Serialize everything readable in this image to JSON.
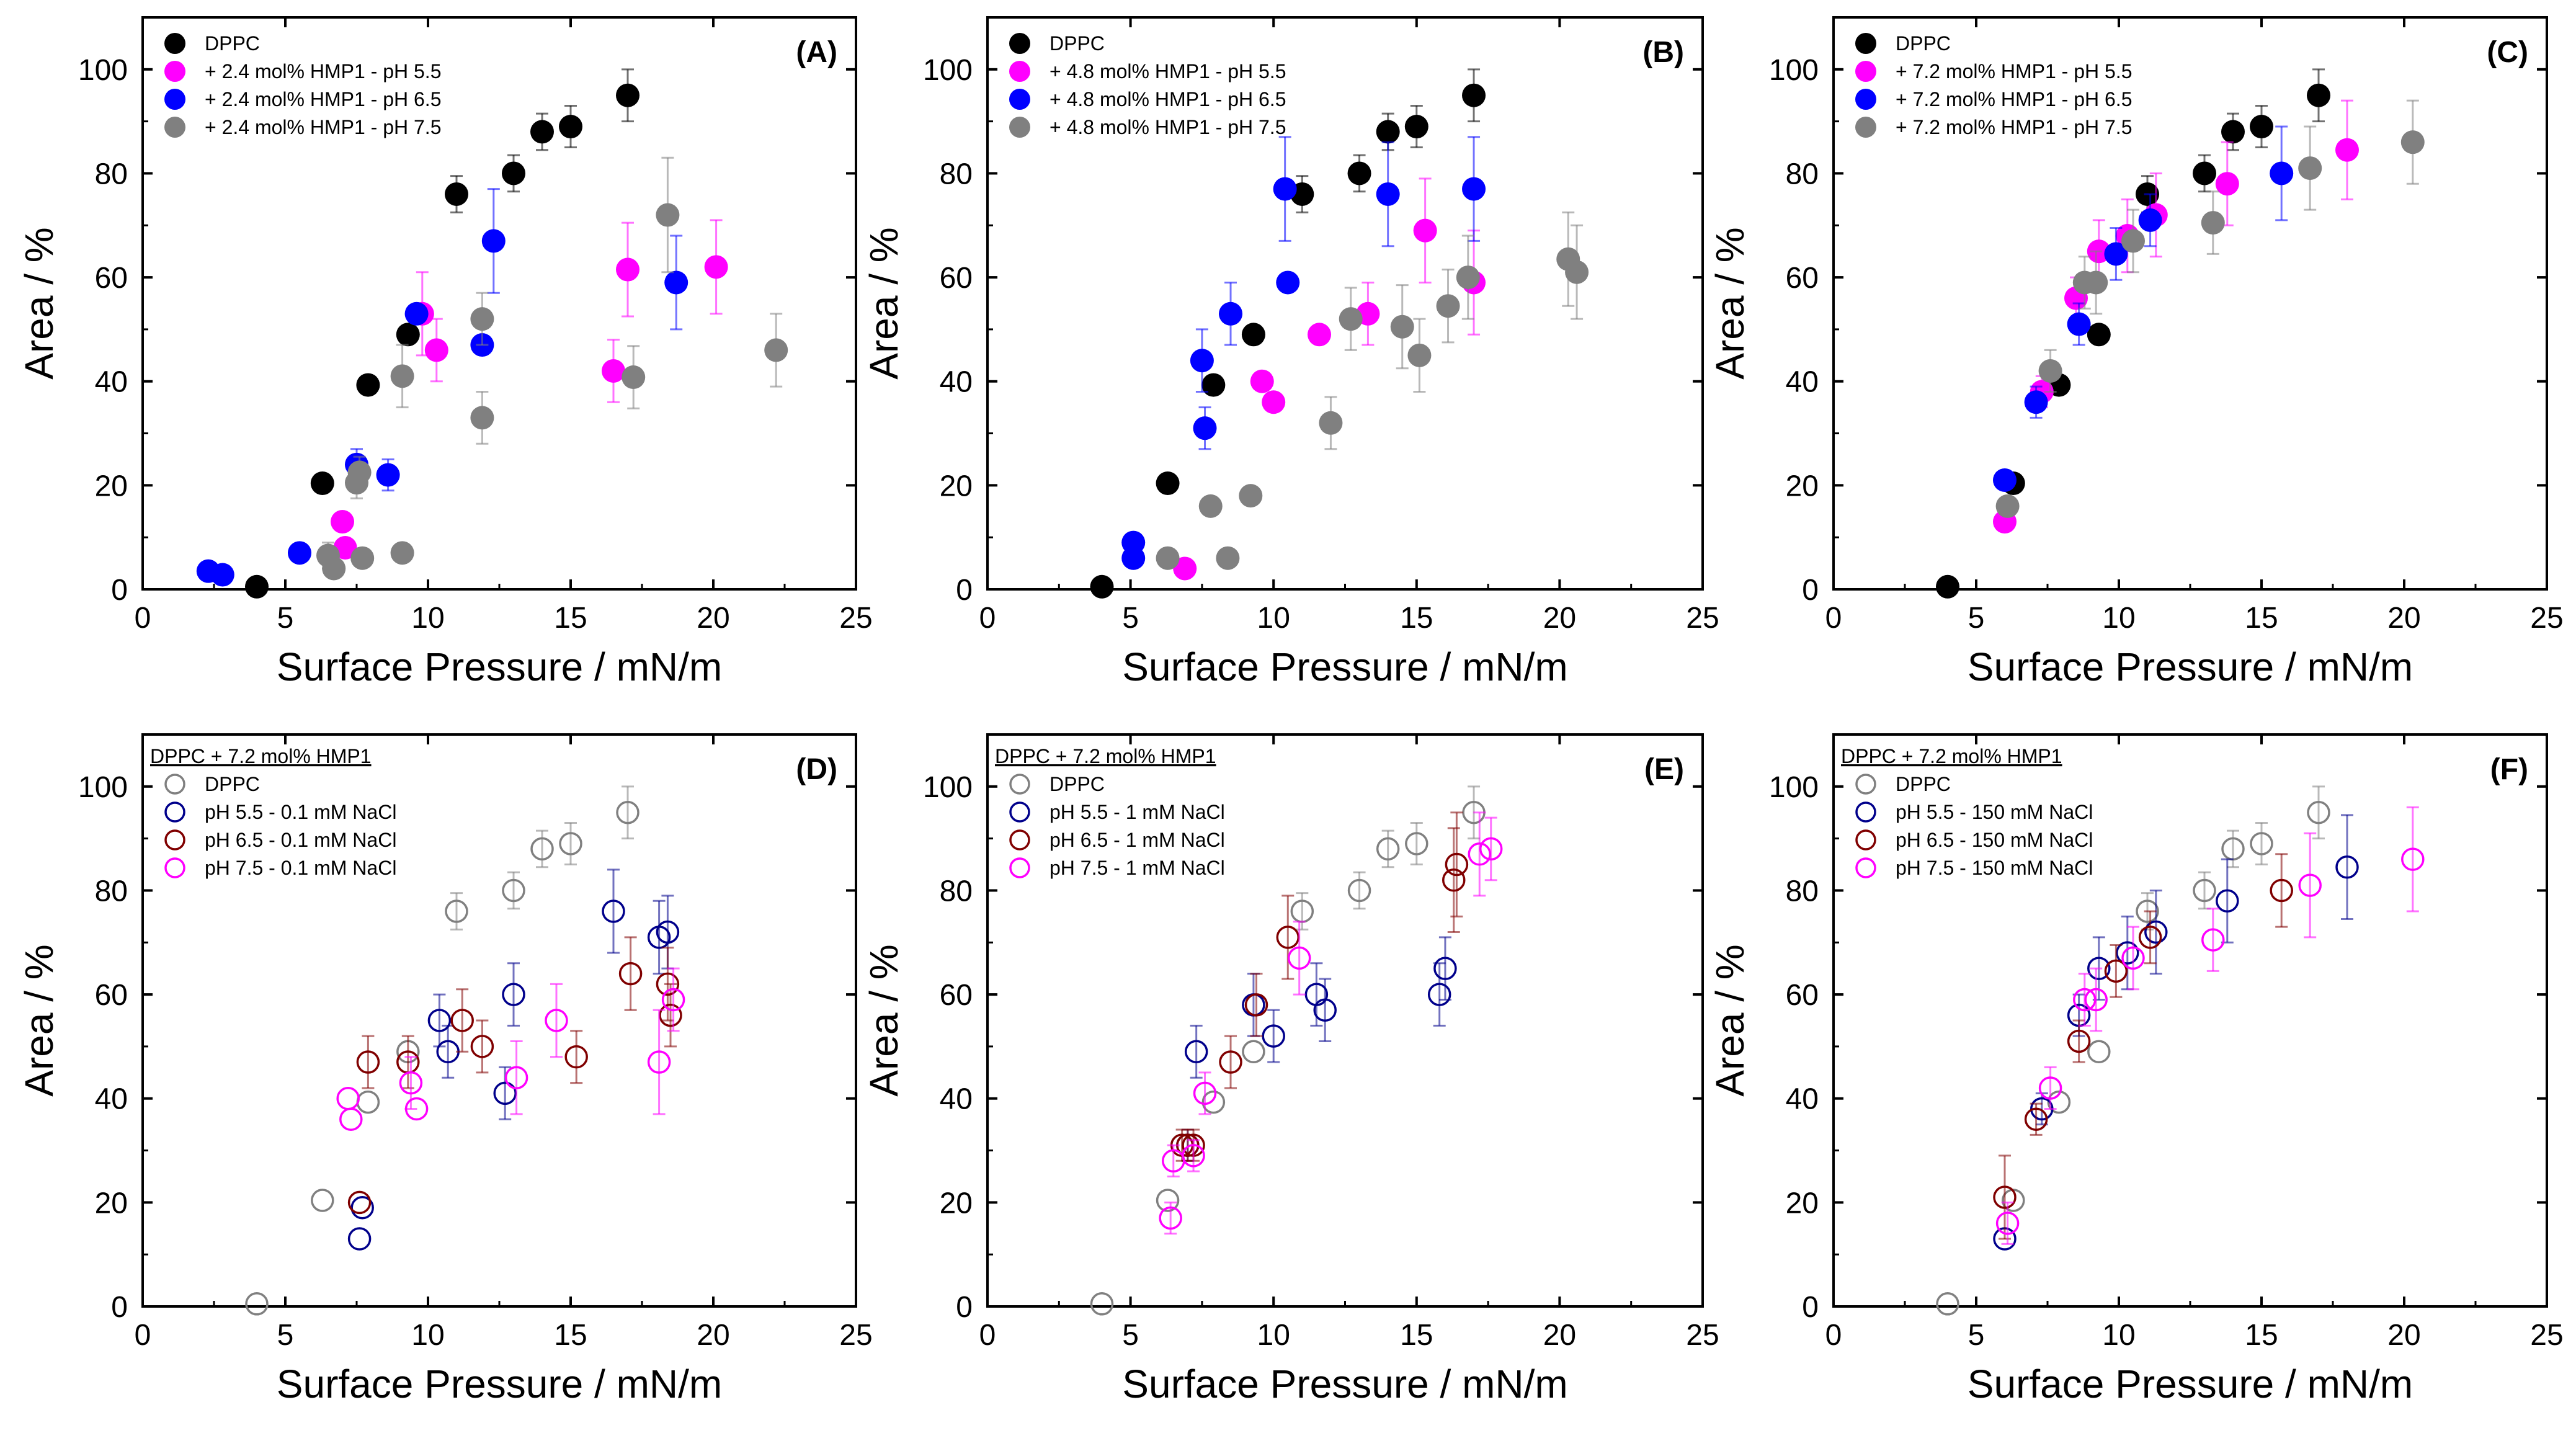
{
  "colors": {
    "DPPC_filled": "#000000",
    "ph55_filled": "#ff00ff",
    "ph65_filled": "#0000ff",
    "ph75_filled": "#808080",
    "DPPC_open": "#808080",
    "ph55_open": "#00008b",
    "ph65_open": "#800000",
    "ph75_open": "#ff00ff"
  },
  "chart_data": [
    {
      "id": "A",
      "type": "scatter",
      "panel_label": "(A)",
      "xlabel": "Surface Pressure / mN/m",
      "ylabel": "Area / %",
      "xlim": [
        0,
        25
      ],
      "ylim": [
        0,
        110
      ],
      "xticks": [
        0,
        5,
        10,
        15,
        20,
        25
      ],
      "yticks": [
        0,
        20,
        40,
        60,
        80,
        100
      ],
      "legend_title": "",
      "series": [
        {
          "name": "DPPC",
          "color": "#000000",
          "fill": true,
          "x": [
            4.0,
            6.3,
            7.9,
            9.3,
            11.0,
            13.0,
            14.0,
            15.0,
            17.0
          ],
          "y": [
            0.5,
            20.4,
            39.3,
            49.0,
            76.0,
            80.0,
            88.0,
            89.0,
            95.0
          ],
          "err": [
            0,
            0,
            0,
            0,
            3.5,
            3.5,
            3.5,
            4.0,
            5.0
          ]
        },
        {
          "name": "+ 2.4 mol% HMP1 - pH 5.5",
          "color": "#ff00ff",
          "fill": true,
          "x": [
            7.0,
            7.1,
            9.8,
            10.3,
            16.5,
            17.0,
            20.1
          ],
          "y": [
            13.0,
            8.0,
            53.0,
            46.0,
            42.0,
            61.5,
            62.0
          ],
          "err": [
            0,
            0,
            8.0,
            6.0,
            6.0,
            9.0,
            9.0
          ]
        },
        {
          "name": "+ 2.4 mol% HMP1 - pH 6.5",
          "color": "#0000ff",
          "fill": true,
          "x": [
            2.3,
            2.8,
            5.5,
            7.5,
            8.6,
            9.6,
            11.9,
            12.3,
            18.7
          ],
          "y": [
            3.5,
            2.8,
            7.0,
            24.0,
            22.0,
            53.0,
            47.0,
            67.0,
            59.0
          ],
          "err": [
            0,
            0,
            0,
            3.0,
            3.0,
            0,
            0,
            10.0,
            9.0
          ]
        },
        {
          "name": "+ 2.4 mol% HMP1 - pH 7.5",
          "color": "#808080",
          "fill": true,
          "x": [
            6.5,
            6.7,
            7.5,
            7.6,
            7.7,
            9.1,
            9.1,
            11.9,
            11.9,
            17.2,
            18.4,
            22.2
          ],
          "y": [
            6.5,
            4.0,
            20.5,
            22.5,
            6.0,
            7.0,
            41.0,
            33.0,
            52.0,
            40.8,
            72.0,
            46.0
          ],
          "err": [
            2.5,
            0,
            3.0,
            3.0,
            0,
            0,
            6.0,
            5.0,
            5.0,
            6.0,
            11.0,
            7.0
          ]
        }
      ]
    },
    {
      "id": "B",
      "type": "scatter",
      "panel_label": "(B)",
      "xlabel": "Surface Pressure / mN/m",
      "ylabel": "Area / %",
      "xlim": [
        0,
        25
      ],
      "ylim": [
        0,
        110
      ],
      "xticks": [
        0,
        5,
        10,
        15,
        20,
        25
      ],
      "yticks": [
        0,
        20,
        40,
        60,
        80,
        100
      ],
      "legend_title": "",
      "series": [
        {
          "name": "DPPC",
          "color": "#000000",
          "fill": true,
          "x": [
            4.0,
            6.3,
            7.9,
            9.3,
            11.0,
            13.0,
            14.0,
            15.0,
            17.0
          ],
          "y": [
            0.5,
            20.4,
            39.3,
            49.0,
            76.0,
            80.0,
            88.0,
            89.0,
            95.0
          ],
          "err": [
            0,
            0,
            0,
            0,
            3.5,
            3.5,
            3.5,
            4.0,
            5.0
          ]
        },
        {
          "name": "+ 4.8 mol% HMP1 - pH 5.5",
          "color": "#ff00ff",
          "fill": true,
          "x": [
            6.9,
            9.6,
            10.0,
            11.6,
            13.3,
            15.3,
            17.0
          ],
          "y": [
            4.0,
            40.0,
            36.0,
            49.0,
            53.0,
            69.0,
            59.0
          ],
          "err": [
            0,
            0,
            0,
            0,
            6.0,
            10.0,
            10.0
          ]
        },
        {
          "name": "+ 4.8 mol% HMP1 - pH 6.5",
          "color": "#0000ff",
          "fill": true,
          "x": [
            5.1,
            5.1,
            7.5,
            7.6,
            8.5,
            10.4,
            10.5,
            14.0,
            17.0
          ],
          "y": [
            9.0,
            6.0,
            44.0,
            31.0,
            53.0,
            77.0,
            59.0,
            76.0,
            77.0
          ],
          "err": [
            0,
            0,
            6.0,
            4.0,
            6.0,
            10.0,
            0,
            10.0,
            10.0
          ]
        },
        {
          "name": "+ 4.8 mol% HMP1 - pH 7.5",
          "color": "#808080",
          "fill": true,
          "x": [
            6.3,
            7.8,
            8.4,
            9.2,
            12.0,
            12.7,
            14.5,
            15.1,
            16.1,
            16.8,
            20.3,
            20.6
          ],
          "y": [
            6.0,
            16.0,
            6.0,
            18.0,
            32.0,
            52.0,
            50.5,
            45.0,
            54.5,
            60.0,
            63.5,
            61.0
          ],
          "err": [
            0,
            0,
            0,
            0,
            5.0,
            6.0,
            8.0,
            7.0,
            7.0,
            8.0,
            9.0,
            9.0
          ]
        }
      ]
    },
    {
      "id": "C",
      "type": "scatter",
      "panel_label": "(C)",
      "xlabel": "Surface Pressure / mN/m",
      "ylabel": "Area / %",
      "xlim": [
        0,
        25
      ],
      "ylim": [
        0,
        110
      ],
      "xticks": [
        0,
        5,
        10,
        15,
        20,
        25
      ],
      "yticks": [
        0,
        20,
        40,
        60,
        80,
        100
      ],
      "legend_title": "",
      "series": [
        {
          "name": "DPPC",
          "color": "#000000",
          "fill": true,
          "x": [
            4.0,
            6.3,
            7.9,
            9.3,
            11.0,
            13.0,
            14.0,
            15.0,
            17.0
          ],
          "y": [
            0.5,
            20.4,
            39.3,
            49.0,
            76.0,
            80.0,
            88.0,
            89.0,
            95.0
          ],
          "err": [
            0,
            0,
            0,
            0,
            3.5,
            3.5,
            3.5,
            4.0,
            5.0
          ]
        },
        {
          "name": "+ 7.2 mol% HMP1 - pH 5.5",
          "color": "#ff00ff",
          "fill": true,
          "x": [
            6.0,
            7.3,
            8.5,
            9.3,
            10.3,
            11.3,
            13.8,
            18.0
          ],
          "y": [
            13.0,
            38.0,
            56.0,
            65.0,
            68.0,
            72.0,
            78.0,
            84.5
          ],
          "err": [
            0,
            3.0,
            4.0,
            6.0,
            7.0,
            8.0,
            8.0,
            9.5
          ]
        },
        {
          "name": "+ 7.2 mol% HMP1 - pH 6.5",
          "color": "#0000ff",
          "fill": true,
          "x": [
            6.0,
            7.1,
            8.6,
            9.9,
            11.1,
            15.7
          ],
          "y": [
            21.0,
            36.0,
            51.0,
            64.5,
            71.0,
            80.0
          ],
          "err": [
            0,
            3.0,
            4.0,
            5.0,
            5.0,
            9.0
          ]
        },
        {
          "name": "+ 7.2 mol% HMP1 - pH 7.5",
          "color": "#808080",
          "fill": true,
          "x": [
            6.1,
            7.6,
            8.8,
            9.2,
            10.5,
            13.3,
            16.7,
            20.3
          ],
          "y": [
            16.0,
            42.0,
            59.0,
            59.0,
            67.0,
            70.5,
            81.0,
            86.0
          ],
          "err": [
            0,
            4.0,
            5.0,
            6.0,
            6.0,
            6.0,
            8.0,
            8.0
          ]
        }
      ]
    },
    {
      "id": "D",
      "type": "scatter",
      "panel_label": "(D)",
      "xlabel": "Surface Pressure / mN/m",
      "ylabel": "Area / %",
      "xlim": [
        0,
        25
      ],
      "ylim": [
        0,
        110
      ],
      "xticks": [
        0,
        5,
        10,
        15,
        20,
        25
      ],
      "yticks": [
        0,
        20,
        40,
        60,
        80,
        100
      ],
      "legend_title": "DPPC + 7.2 mol% HMP1",
      "series": [
        {
          "name": "DPPC",
          "color": "#808080",
          "fill": false,
          "x": [
            4.0,
            6.3,
            7.9,
            9.3,
            11.0,
            13.0,
            14.0,
            15.0,
            17.0
          ],
          "y": [
            0.5,
            20.4,
            39.3,
            49.0,
            76.0,
            80.0,
            88.0,
            89.0,
            95.0
          ],
          "err": [
            0,
            0,
            0,
            0,
            3.5,
            3.5,
            3.5,
            4.0,
            5.0
          ]
        },
        {
          "name": "pH 5.5 - 0.1 mM NaCl",
          "color": "#00008b",
          "fill": false,
          "x": [
            7.6,
            7.7,
            10.4,
            10.7,
            12.7,
            13.0,
            16.5,
            18.1,
            18.4
          ],
          "y": [
            13.0,
            19.0,
            55.0,
            49.0,
            41.0,
            60.0,
            76.0,
            71.0,
            72.0
          ],
          "err": [
            0,
            0,
            5.0,
            5.0,
            5.0,
            6.0,
            8.0,
            7.0,
            7.0
          ]
        },
        {
          "name": "pH 6.5 - 0.1 mM NaCl",
          "color": "#800000",
          "fill": false,
          "x": [
            7.6,
            7.9,
            9.3,
            11.2,
            11.9,
            15.2,
            17.1,
            18.4,
            18.5
          ],
          "y": [
            20.0,
            47.0,
            47.0,
            55.0,
            50.0,
            48.0,
            64.0,
            62.0,
            56.0
          ],
          "err": [
            0,
            5.0,
            5.0,
            6.0,
            5.0,
            5.0,
            7.0,
            7.0,
            6.0
          ]
        },
        {
          "name": "pH 7.5 - 0.1 mM NaCl",
          "color": "#ff00ff",
          "fill": false,
          "x": [
            7.2,
            7.3,
            9.4,
            9.6,
            13.1,
            14.5,
            18.1,
            18.6
          ],
          "y": [
            40.0,
            36.0,
            43.0,
            38.0,
            44.0,
            55.0,
            47.0,
            59.0
          ],
          "err": [
            0,
            0,
            5.0,
            0,
            7.0,
            7.0,
            10.0,
            6.0
          ]
        }
      ]
    },
    {
      "id": "E",
      "type": "scatter",
      "panel_label": "(E)",
      "xlabel": "Surface Pressure / mN/m",
      "ylabel": "Area / %",
      "xlim": [
        0,
        25
      ],
      "ylim": [
        0,
        110
      ],
      "xticks": [
        0,
        5,
        10,
        15,
        20,
        25
      ],
      "yticks": [
        0,
        20,
        40,
        60,
        80,
        100
      ],
      "legend_title": "DPPC + 7.2 mol% HMP1",
      "series": [
        {
          "name": "DPPC",
          "color": "#808080",
          "fill": false,
          "x": [
            4.0,
            6.3,
            7.9,
            9.3,
            11.0,
            13.0,
            14.0,
            15.0,
            17.0
          ],
          "y": [
            0.5,
            20.4,
            39.3,
            49.0,
            76.0,
            80.0,
            88.0,
            89.0,
            95.0
          ],
          "err": [
            0,
            0,
            0,
            0,
            3.5,
            3.5,
            3.5,
            4.0,
            5.0
          ]
        },
        {
          "name": "pH 5.5 - 1 mM NaCl",
          "color": "#00008b",
          "fill": false,
          "x": [
            7.0,
            7.3,
            9.3,
            10.0,
            11.5,
            11.8,
            15.8,
            16.0
          ],
          "y": [
            31.0,
            49.0,
            58.0,
            52.0,
            60.0,
            57.0,
            60.0,
            65.0
          ],
          "err": [
            3.0,
            5.0,
            6.0,
            5.0,
            6.0,
            6.0,
            6.0,
            6.0
          ]
        },
        {
          "name": "pH 6.5 - 1 mM NaCl",
          "color": "#800000",
          "fill": false,
          "x": [
            6.8,
            7.0,
            7.2,
            8.5,
            9.4,
            10.5,
            16.3,
            16.4
          ],
          "y": [
            31.0,
            31.0,
            31.0,
            47.0,
            58.0,
            71.0,
            82.0,
            85.0
          ],
          "err": [
            3.0,
            3.0,
            3.0,
            5.0,
            6.0,
            8.0,
            10.0,
            10.0
          ]
        },
        {
          "name": "pH 7.5 - 1 mM NaCl",
          "color": "#ff00ff",
          "fill": false,
          "x": [
            6.4,
            6.5,
            7.2,
            7.6,
            10.9,
            17.2,
            17.6
          ],
          "y": [
            17.0,
            28.0,
            29.0,
            41.0,
            67.0,
            87.0,
            88.0
          ],
          "err": [
            3.0,
            3.0,
            3.0,
            4.0,
            7.0,
            8.0,
            6.0
          ]
        }
      ]
    },
    {
      "id": "F",
      "type": "scatter",
      "panel_label": "(F)",
      "xlabel": "Surface Pressure / mN/m",
      "ylabel": "Area / %",
      "xlim": [
        0,
        25
      ],
      "ylim": [
        0,
        110
      ],
      "xticks": [
        0,
        5,
        10,
        15,
        20,
        25
      ],
      "yticks": [
        0,
        20,
        40,
        60,
        80,
        100
      ],
      "legend_title": "DPPC + 7.2 mol% HMP1",
      "series": [
        {
          "name": "DPPC",
          "color": "#808080",
          "fill": false,
          "x": [
            4.0,
            6.3,
            7.9,
            9.3,
            11.0,
            13.0,
            14.0,
            15.0,
            17.0
          ],
          "y": [
            0.5,
            20.4,
            39.3,
            49.0,
            76.0,
            80.0,
            88.0,
            89.0,
            95.0
          ],
          "err": [
            0,
            0,
            0,
            0,
            3.5,
            3.5,
            3.5,
            4.0,
            5.0
          ]
        },
        {
          "name": "pH 5.5 - 150 mM NaCl",
          "color": "#00008b",
          "fill": false,
          "x": [
            6.0,
            7.3,
            8.6,
            9.3,
            10.3,
            11.3,
            13.8,
            18.0
          ],
          "y": [
            13.0,
            38.0,
            56.0,
            65.0,
            68.0,
            72.0,
            78.0,
            84.5
          ],
          "err": [
            0,
            3.0,
            4.0,
            6.0,
            7.0,
            8.0,
            8.0,
            10.0
          ]
        },
        {
          "name": "pH 6.5 - 150 mM NaCl",
          "color": "#800000",
          "fill": false,
          "x": [
            6.0,
            7.1,
            8.6,
            9.9,
            11.1,
            15.7
          ],
          "y": [
            21.0,
            36.0,
            51.0,
            64.5,
            71.0,
            80.0
          ],
          "err": [
            8.0,
            3.0,
            4.0,
            5.0,
            5.0,
            7.0
          ]
        },
        {
          "name": "pH 7.5 - 150 mM NaCl",
          "color": "#ff00ff",
          "fill": false,
          "x": [
            6.1,
            7.6,
            8.8,
            9.2,
            10.5,
            13.3,
            16.7,
            20.3
          ],
          "y": [
            16.0,
            42.0,
            59.0,
            59.0,
            67.0,
            70.5,
            81.0,
            86.0
          ],
          "err": [
            4.0,
            4.0,
            5.0,
            6.0,
            6.0,
            6.0,
            10.0,
            10.0
          ]
        }
      ]
    }
  ]
}
